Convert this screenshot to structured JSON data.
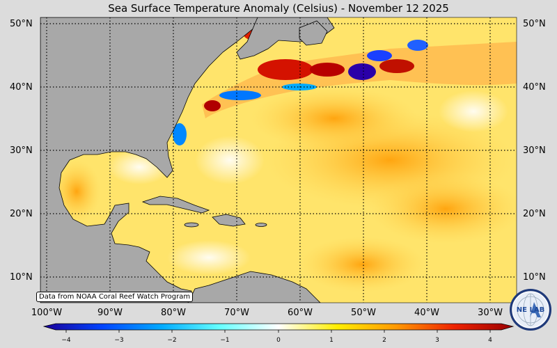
{
  "title": "Sea Surface Temperature Anomaly (Celsius) - November 12 2025",
  "lat_labels": [
    "50°N",
    "40°N",
    "30°N",
    "20°N",
    "10°N"
  ],
  "lat_labels_right": [
    "50°N",
    "40°N",
    "30°N",
    "20°N",
    "10°N"
  ],
  "lon_labels": [
    "100°W",
    "90°W",
    "80°W",
    "70°W",
    "60°W",
    "50°W",
    "40°W",
    "30°W"
  ],
  "credit": "Data from NOAA Coral Reef Watch Program",
  "colorbar": {
    "ticks": [
      "−4",
      "−3",
      "−2",
      "−1",
      "0",
      "1",
      "2",
      "3",
      "4"
    ],
    "min": -4,
    "max": 4,
    "colors": [
      "#1a0099",
      "#0044ff",
      "#00aaff",
      "#66ffff",
      "#ffffff",
      "#ffee00",
      "#ff9900",
      "#ee2200",
      "#990000"
    ]
  },
  "logo": {
    "icon": "nemo-lab-globe-icon",
    "text": "NE  LAB"
  },
  "colors": {
    "land": "#a9a9a9",
    "ocean_warm": "#ffe566",
    "ocean_hot": "#ffb300",
    "ocean_cool": "#66ccff",
    "ocean_cold": "#2200aa",
    "hot_spot": "#cc1100"
  }
}
